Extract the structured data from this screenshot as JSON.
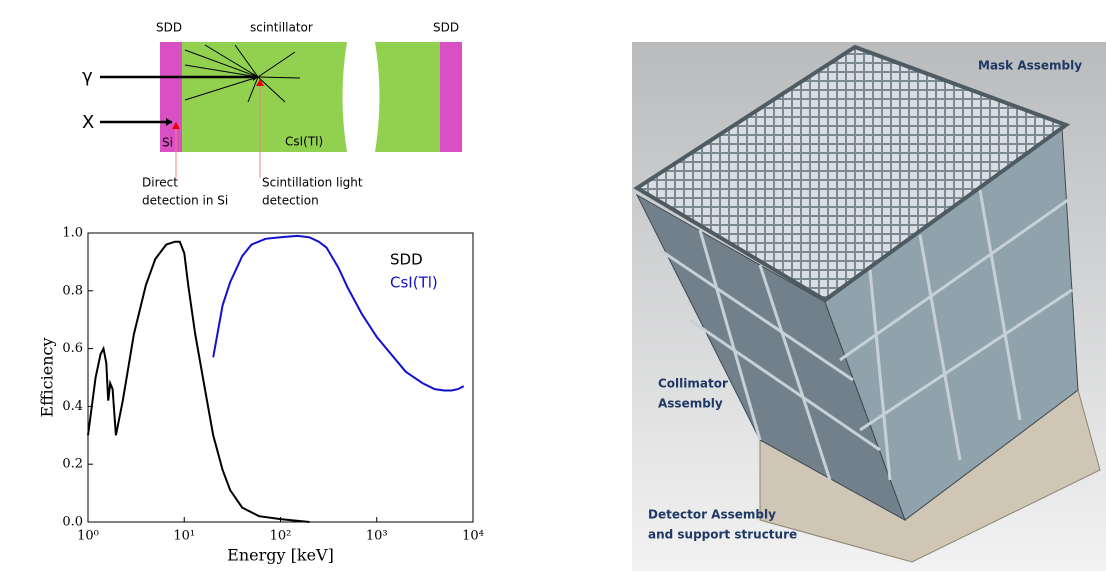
{
  "diagram": {
    "labels": {
      "sdd_left": "SDD",
      "scintillator": "scintillator",
      "sdd_right": "SDD",
      "gamma": "γ",
      "xray": "X",
      "si": "Si",
      "csi": "CsI(Tl)"
    },
    "notes": {
      "direct": [
        "Direct",
        "detection in Si"
      ],
      "scint": [
        "Scintillation light",
        "detection"
      ]
    }
  },
  "chart_data": {
    "type": "line",
    "xlabel": "Energy [keV]",
    "ylabel": "Efficiency",
    "xscale": "log",
    "xlim": [
      1,
      10000
    ],
    "ylim": [
      0,
      1
    ],
    "xticks": [
      {
        "value": 1,
        "label": "10⁰"
      },
      {
        "value": 10,
        "label": "10¹"
      },
      {
        "value": 100,
        "label": "10²"
      },
      {
        "value": 1000,
        "label": "10³"
      },
      {
        "value": 10000,
        "label": "10⁴"
      }
    ],
    "yticks": [
      {
        "value": 0,
        "label": "0.0"
      },
      0.2,
      0.4,
      0.6,
      0.8,
      {
        "value": 1,
        "label": "1.0"
      }
    ],
    "legend": "upper right",
    "series": [
      {
        "name": "SDD",
        "color": "#000000",
        "x": [
          1,
          1.2,
          1.35,
          1.45,
          1.55,
          1.62,
          1.7,
          1.8,
          1.95,
          2.3,
          3,
          4,
          5,
          6.5,
          8,
          9,
          10,
          11,
          13,
          16,
          20,
          25,
          30,
          40,
          60,
          100,
          200
        ],
        "values": [
          0.3,
          0.5,
          0.58,
          0.6,
          0.55,
          0.42,
          0.48,
          0.46,
          0.3,
          0.42,
          0.65,
          0.82,
          0.91,
          0.96,
          0.97,
          0.97,
          0.93,
          0.82,
          0.65,
          0.48,
          0.3,
          0.18,
          0.11,
          0.05,
          0.02,
          0.01,
          0.0
        ]
      },
      {
        "name": "CsI(Tl)",
        "color": "#1010d0",
        "x": [
          20,
          25,
          30,
          40,
          50,
          70,
          100,
          150,
          200,
          250,
          300,
          400,
          500,
          700,
          1000,
          1500,
          2000,
          3000,
          4000,
          5000,
          6000,
          7000,
          8000
        ],
        "values": [
          0.57,
          0.75,
          0.83,
          0.92,
          0.96,
          0.98,
          0.985,
          0.99,
          0.985,
          0.97,
          0.95,
          0.88,
          0.81,
          0.72,
          0.64,
          0.57,
          0.52,
          0.48,
          0.46,
          0.455,
          0.455,
          0.46,
          0.47
        ]
      }
    ]
  },
  "render": {
    "labels": {
      "mask": "Mask Assembly",
      "collimator": [
        "Collimator",
        "Assembly"
      ],
      "detector": [
        "Detector Assembly",
        "and support structure"
      ]
    }
  }
}
